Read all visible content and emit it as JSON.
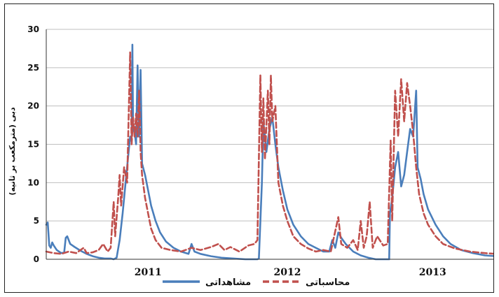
{
  "chart_data": {
    "type": "line",
    "title": "",
    "ylabel": "دبی (مترمکعب بر ثانیه)",
    "xlabel": "",
    "ylim": [
      0,
      30
    ],
    "yticks": [
      0,
      5,
      10,
      15,
      20,
      25,
      30
    ],
    "xlim": [
      2010.45,
      2013.45
    ],
    "xticks": [
      {
        "label": "2011",
        "x": 2011.13
      },
      {
        "label": "2012",
        "x": 2012.06
      },
      {
        "label": "2013",
        "x": 2013.03
      }
    ],
    "grid": true,
    "legend": "bottom-center",
    "series": [
      {
        "name": "مشاهداتی",
        "color": "#4a7ebb",
        "dash": "solid",
        "points": [
          [
            2010.45,
            4.5
          ],
          [
            2010.46,
            4.8
          ],
          [
            2010.47,
            1.8
          ],
          [
            2010.48,
            1.5
          ],
          [
            2010.49,
            2.2
          ],
          [
            2010.5,
            1.8
          ],
          [
            2010.52,
            1.2
          ],
          [
            2010.55,
            0.8
          ],
          [
            2010.57,
            0.9
          ],
          [
            2010.58,
            2.8
          ],
          [
            2010.59,
            3.0
          ],
          [
            2010.61,
            2.0
          ],
          [
            2010.64,
            1.6
          ],
          [
            2010.68,
            1.1
          ],
          [
            2010.72,
            0.7
          ],
          [
            2010.76,
            0.4
          ],
          [
            2010.8,
            0.2
          ],
          [
            2010.84,
            0.1
          ],
          [
            2010.88,
            0.1
          ],
          [
            2010.9,
            0.0
          ],
          [
            2010.92,
            0.2
          ],
          [
            2010.94,
            2.5
          ],
          [
            2010.96,
            6.0
          ],
          [
            2010.98,
            10.0
          ],
          [
            2011.0,
            14.0
          ],
          [
            2011.01,
            16.0
          ],
          [
            2011.02,
            15.5
          ],
          [
            2011.025,
            28.0
          ],
          [
            2011.03,
            17.0
          ],
          [
            2011.04,
            16.5
          ],
          [
            2011.05,
            15.0
          ],
          [
            2011.06,
            25.3
          ],
          [
            2011.07,
            16.0
          ],
          [
            2011.08,
            24.7
          ],
          [
            2011.09,
            12.5
          ],
          [
            2011.11,
            11.0
          ],
          [
            2011.13,
            9.0
          ],
          [
            2011.15,
            7.0
          ],
          [
            2011.18,
            5.0
          ],
          [
            2011.21,
            3.5
          ],
          [
            2011.25,
            2.3
          ],
          [
            2011.3,
            1.5
          ],
          [
            2011.35,
            1.0
          ],
          [
            2011.4,
            0.7
          ],
          [
            2011.42,
            2.0
          ],
          [
            2011.44,
            1.0
          ],
          [
            2011.48,
            0.7
          ],
          [
            2011.55,
            0.4
          ],
          [
            2011.62,
            0.2
          ],
          [
            2011.7,
            0.1
          ],
          [
            2011.78,
            0.0
          ],
          [
            2011.86,
            0.0
          ],
          [
            2011.87,
            0.1
          ],
          [
            2011.89,
            10.0
          ],
          [
            2011.9,
            18.0
          ],
          [
            2011.92,
            14.0
          ],
          [
            2011.94,
            17.0
          ],
          [
            2011.96,
            18.5
          ],
          [
            2011.98,
            15.0
          ],
          [
            2012.0,
            12.0
          ],
          [
            2012.03,
            9.0
          ],
          [
            2012.06,
            6.5
          ],
          [
            2012.1,
            4.5
          ],
          [
            2012.15,
            3.0
          ],
          [
            2012.2,
            2.0
          ],
          [
            2012.25,
            1.5
          ],
          [
            2012.3,
            1.0
          ],
          [
            2012.34,
            1.0
          ],
          [
            2012.36,
            2.5
          ],
          [
            2012.38,
            1.5
          ],
          [
            2012.4,
            3.5
          ],
          [
            2012.42,
            2.8
          ],
          [
            2012.45,
            2.0
          ],
          [
            2012.5,
            1.0
          ],
          [
            2012.55,
            0.5
          ],
          [
            2012.6,
            0.2
          ],
          [
            2012.65,
            0.0
          ],
          [
            2012.7,
            0.0
          ],
          [
            2012.74,
            0.0
          ],
          [
            2012.745,
            6.0
          ],
          [
            2012.76,
            8.0
          ],
          [
            2012.78,
            12.0
          ],
          [
            2012.8,
            14.0
          ],
          [
            2012.82,
            9.5
          ],
          [
            2012.84,
            11.0
          ],
          [
            2012.86,
            14.0
          ],
          [
            2012.88,
            17.0
          ],
          [
            2012.9,
            16.0
          ],
          [
            2012.92,
            22.0
          ],
          [
            2012.93,
            12.0
          ],
          [
            2012.95,
            10.5
          ],
          [
            2012.97,
            8.5
          ],
          [
            2013.0,
            6.5
          ],
          [
            2013.05,
            4.5
          ],
          [
            2013.1,
            3.0
          ],
          [
            2013.15,
            2.0
          ],
          [
            2013.22,
            1.2
          ],
          [
            2013.3,
            0.8
          ],
          [
            2013.38,
            0.5
          ],
          [
            2013.45,
            0.4
          ]
        ]
      },
      {
        "name": "محاسباتی",
        "color": "#c0504d",
        "dash": "dashed",
        "points": [
          [
            2010.45,
            1.0
          ],
          [
            2010.5,
            0.8
          ],
          [
            2010.55,
            0.7
          ],
          [
            2010.6,
            1.0
          ],
          [
            2010.65,
            0.8
          ],
          [
            2010.7,
            1.5
          ],
          [
            2010.72,
            0.8
          ],
          [
            2010.76,
            0.9
          ],
          [
            2010.8,
            1.2
          ],
          [
            2010.83,
            2.0
          ],
          [
            2010.86,
            1.0
          ],
          [
            2010.88,
            1.5
          ],
          [
            2010.9,
            7.5
          ],
          [
            2010.91,
            3.0
          ],
          [
            2010.93,
            8.0
          ],
          [
            2010.94,
            11.0
          ],
          [
            2010.95,
            7.0
          ],
          [
            2010.97,
            12.0
          ],
          [
            2010.99,
            10.0
          ],
          [
            2011.01,
            27.0
          ],
          [
            2011.02,
            15.0
          ],
          [
            2011.03,
            18.5
          ],
          [
            2011.04,
            16.0
          ],
          [
            2011.05,
            19.0
          ],
          [
            2011.06,
            16.0
          ],
          [
            2011.07,
            22.0
          ],
          [
            2011.08,
            14.0
          ],
          [
            2011.09,
            11.0
          ],
          [
            2011.11,
            8.0
          ],
          [
            2011.13,
            6.0
          ],
          [
            2011.15,
            4.0
          ],
          [
            2011.18,
            2.5
          ],
          [
            2011.22,
            1.5
          ],
          [
            2011.28,
            1.2
          ],
          [
            2011.35,
            1.0
          ],
          [
            2011.42,
            1.5
          ],
          [
            2011.48,
            1.2
          ],
          [
            2011.55,
            1.6
          ],
          [
            2011.6,
            2.0
          ],
          [
            2011.64,
            1.2
          ],
          [
            2011.68,
            1.6
          ],
          [
            2011.74,
            1.0
          ],
          [
            2011.8,
            1.8
          ],
          [
            2011.84,
            2.0
          ],
          [
            2011.86,
            2.5
          ],
          [
            2011.88,
            24.0
          ],
          [
            2011.89,
            14.0
          ],
          [
            2011.9,
            21.0
          ],
          [
            2011.91,
            13.0
          ],
          [
            2011.93,
            22.0
          ],
          [
            2011.94,
            15.0
          ],
          [
            2011.95,
            24.0
          ],
          [
            2011.96,
            18.0
          ],
          [
            2011.98,
            20.0
          ],
          [
            2012.0,
            10.0
          ],
          [
            2012.03,
            7.0
          ],
          [
            2012.06,
            5.0
          ],
          [
            2012.1,
            3.0
          ],
          [
            2012.15,
            2.0
          ],
          [
            2012.2,
            1.4
          ],
          [
            2012.25,
            1.0
          ],
          [
            2012.3,
            1.2
          ],
          [
            2012.35,
            1.0
          ],
          [
            2012.4,
            5.5
          ],
          [
            2012.42,
            2.0
          ],
          [
            2012.46,
            1.5
          ],
          [
            2012.5,
            2.5
          ],
          [
            2012.53,
            1.2
          ],
          [
            2012.55,
            5.0
          ],
          [
            2012.57,
            1.5
          ],
          [
            2012.59,
            3.0
          ],
          [
            2012.61,
            7.5
          ],
          [
            2012.63,
            1.5
          ],
          [
            2012.66,
            3.0
          ],
          [
            2012.7,
            1.8
          ],
          [
            2012.73,
            2.0
          ],
          [
            2012.75,
            15.5
          ],
          [
            2012.76,
            5.0
          ],
          [
            2012.78,
            22.0
          ],
          [
            2012.8,
            16.0
          ],
          [
            2012.82,
            23.5
          ],
          [
            2012.84,
            18.0
          ],
          [
            2012.86,
            23.0
          ],
          [
            2012.88,
            20.0
          ],
          [
            2012.9,
            16.5
          ],
          [
            2012.92,
            12.0
          ],
          [
            2012.94,
            8.5
          ],
          [
            2012.97,
            6.0
          ],
          [
            2013.0,
            4.5
          ],
          [
            2013.05,
            3.0
          ],
          [
            2013.1,
            2.0
          ],
          [
            2013.18,
            1.4
          ],
          [
            2013.28,
            1.0
          ],
          [
            2013.38,
            0.8
          ],
          [
            2013.45,
            0.7
          ]
        ]
      }
    ]
  }
}
